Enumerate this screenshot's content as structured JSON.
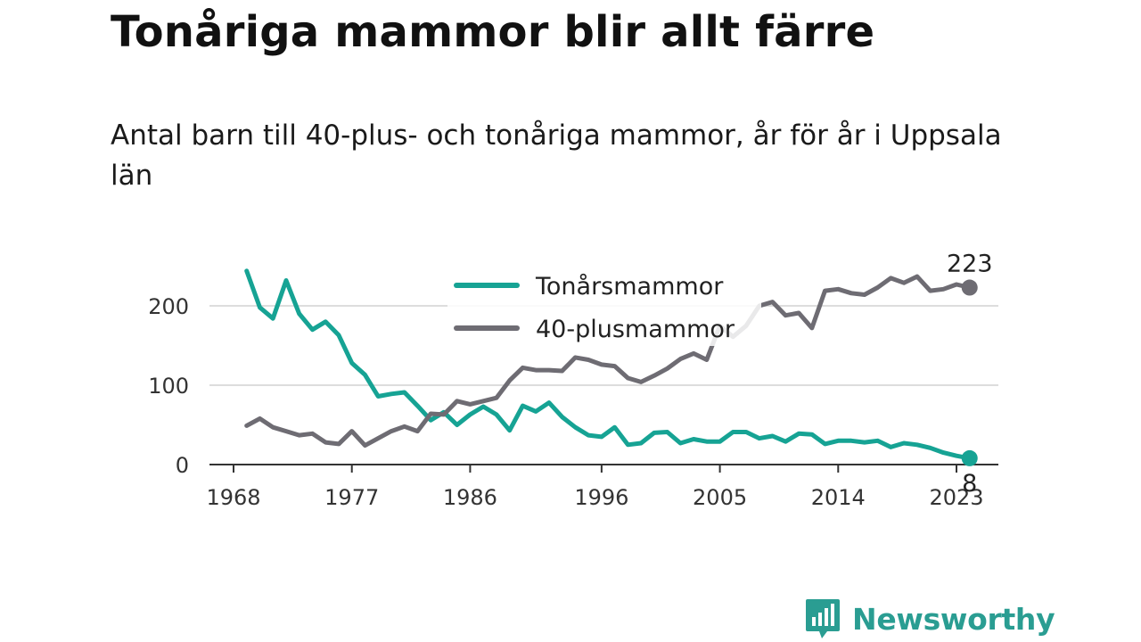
{
  "header": {
    "title": "Tonåriga mammor blir allt färre",
    "subtitle": "Antal barn till 40-plus- och tonåriga mammor, år för år i Uppsala län"
  },
  "brand": {
    "name": "Newsworthy",
    "icon": "newsworthy-logo-icon",
    "color": "#2a9d92"
  },
  "chart_data": {
    "type": "line",
    "title": "Tonåriga mammor blir allt färre",
    "subtitle": "Antal barn till 40-plus- och tonåriga mammor, år för år i Uppsala län",
    "xlabel": "",
    "ylabel": "",
    "x_ticks": [
      1968,
      1977,
      1986,
      1996,
      2005,
      2014,
      2023
    ],
    "y_ticks": [
      0,
      100,
      200
    ],
    "xlim": [
      1967,
      2027
    ],
    "ylim": [
      0,
      255
    ],
    "grid": true,
    "legend_position": "top-center",
    "x": [
      1969,
      1970,
      1971,
      1972,
      1973,
      1974,
      1975,
      1976,
      1977,
      1978,
      1979,
      1980,
      1981,
      1982,
      1983,
      1984,
      1985,
      1986,
      1987,
      1988,
      1989,
      1990,
      1991,
      1992,
      1993,
      1994,
      1995,
      1996,
      1997,
      1998,
      1999,
      2000,
      2001,
      2002,
      2003,
      2004,
      2005,
      2006,
      2007,
      2008,
      2009,
      2010,
      2011,
      2012,
      2013,
      2014,
      2015,
      2016,
      2017,
      2018,
      2019,
      2020,
      2021,
      2022,
      2023,
      2024
    ],
    "series": [
      {
        "name": "Tonårsmammor",
        "color": "#16a394",
        "values": [
          244,
          198,
          184,
          232,
          190,
          170,
          180,
          163,
          128,
          113,
          86,
          89,
          91,
          74,
          56,
          66,
          50,
          63,
          73,
          63,
          43,
          74,
          67,
          78,
          60,
          47,
          37,
          35,
          47,
          25,
          27,
          40,
          41,
          27,
          32,
          29,
          29,
          41,
          41,
          33,
          36,
          29,
          39,
          38,
          26,
          30,
          30,
          28,
          30,
          22,
          27,
          25,
          21,
          15,
          11,
          8
        ],
        "end_label": "8"
      },
      {
        "name": "40-plusmammor",
        "color": "#6e6c73",
        "values": [
          49,
          58,
          47,
          42,
          37,
          39,
          28,
          26,
          42,
          24,
          33,
          42,
          48,
          42,
          64,
          63,
          80,
          76,
          80,
          84,
          106,
          122,
          119,
          119,
          118,
          135,
          132,
          126,
          124,
          109,
          104,
          112,
          121,
          133,
          140,
          132,
          175,
          161,
          175,
          200,
          205,
          188,
          191,
          172,
          219,
          221,
          216,
          214,
          223,
          235,
          229,
          237,
          219,
          221,
          227,
          223
        ],
        "end_label": "223"
      }
    ]
  }
}
